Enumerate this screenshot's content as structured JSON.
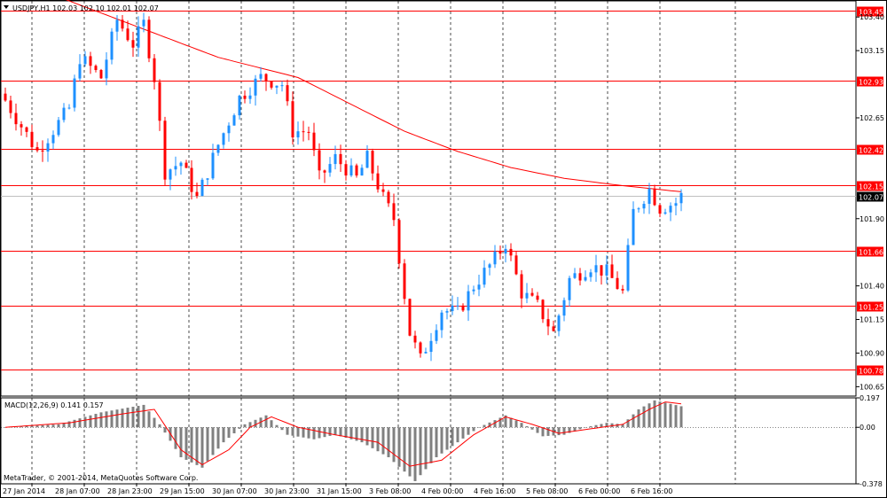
{
  "window": {
    "title": "USDJPY,H1  102.03 102.10 102.01 102.07",
    "indicator_title": "MACD(12,26,9) 0.141 0.157",
    "copyright": "MetaTrader, © 2001-2014, MetaQuotes Software Corp."
  },
  "colors": {
    "bull": "#1e90ff",
    "bear": "#ff0000",
    "level_line": "#ff0000",
    "ma": "#ff0000",
    "grid": "#000000",
    "histogram": "#808080",
    "signal": "#ff0000"
  },
  "price_axis": {
    "min": 100.58,
    "max": 103.52,
    "ticks": [
      "103.40",
      "103.15",
      "102.65",
      "101.90",
      "101.40",
      "101.15",
      "100.90",
      "100.65"
    ],
    "tick_values": [
      103.4,
      103.15,
      102.65,
      101.9,
      101.4,
      101.15,
      100.9,
      100.65
    ],
    "current_price": "102.07",
    "current_value": 102.07
  },
  "levels": [
    {
      "label": "103.45",
      "value": 103.45
    },
    {
      "label": "102.93",
      "value": 102.93
    },
    {
      "label": "102.42",
      "value": 102.42
    },
    {
      "label": "102.15",
      "value": 102.15
    },
    {
      "label": "101.66",
      "value": 101.66
    },
    {
      "label": "101.25",
      "value": 101.25
    },
    {
      "label": "100.78",
      "value": 100.78
    }
  ],
  "macd_axis": {
    "min": -0.378,
    "max": 0.197,
    "ticks": [
      "0.197",
      "0.00",
      "-0.378"
    ],
    "tick_values": [
      0.197,
      0.0,
      -0.378
    ]
  },
  "time_axis": {
    "labels": [
      "27 Jan 2014",
      "28 Jan 07:00",
      "28 Jan 23:00",
      "29 Jan 15:00",
      "30 Jan 07:00",
      "30 Jan 23:00",
      "31 Jan 15:00",
      "3 Feb 08:00",
      "4 Feb 00:00",
      "4 Feb 16:00",
      "5 Feb 08:00",
      "6 Feb 00:00",
      "6 Feb 16:00"
    ]
  },
  "chart_data": {
    "type": "candlestick",
    "symbol": "USDJPY",
    "timeframe": "H1",
    "bar_count": 128,
    "close_path": [
      [
        0,
        102.78
      ],
      [
        6,
        102.4
      ],
      [
        12,
        102.72
      ],
      [
        14,
        103.1
      ],
      [
        18,
        102.95
      ],
      [
        21,
        103.38
      ],
      [
        24,
        103.2
      ],
      [
        26,
        103.35
      ],
      [
        28,
        102.95
      ],
      [
        30,
        102.25
      ],
      [
        33,
        102.32
      ],
      [
        36,
        102.05
      ],
      [
        40,
        102.45
      ],
      [
        44,
        102.8
      ],
      [
        48,
        102.95
      ],
      [
        52,
        102.9
      ],
      [
        54,
        102.55
      ],
      [
        57,
        102.55
      ],
      [
        59,
        102.2
      ],
      [
        62,
        102.35
      ],
      [
        66,
        102.2
      ],
      [
        68,
        102.35
      ],
      [
        71,
        102.05
      ],
      [
        73,
        101.9
      ],
      [
        76,
        101.05
      ],
      [
        78,
        100.85
      ],
      [
        82,
        101.22
      ],
      [
        85,
        101.2
      ],
      [
        88,
        101.4
      ],
      [
        92,
        101.6
      ],
      [
        94,
        101.72
      ],
      [
        97,
        101.35
      ],
      [
        100,
        101.25
      ],
      [
        103,
        101.05
      ],
      [
        106,
        101.45
      ],
      [
        110,
        101.55
      ],
      [
        113,
        101.5
      ],
      [
        116,
        101.35
      ],
      [
        118,
        101.95
      ],
      [
        121,
        102.12
      ],
      [
        123,
        101.98
      ],
      [
        126,
        102.02
      ],
      [
        127,
        102.07
      ]
    ],
    "ma_path": [
      [
        0,
        103.7
      ],
      [
        20,
        103.4
      ],
      [
        40,
        103.1
      ],
      [
        55,
        102.95
      ],
      [
        65,
        102.75
      ],
      [
        75,
        102.55
      ],
      [
        85,
        102.4
      ],
      [
        95,
        102.28
      ],
      [
        105,
        102.2
      ],
      [
        115,
        102.15
      ],
      [
        127,
        102.1
      ]
    ],
    "macd_hist_path": [
      [
        0,
        0.0
      ],
      [
        10,
        0.02
      ],
      [
        18,
        0.1
      ],
      [
        26,
        0.15
      ],
      [
        29,
        0.02
      ],
      [
        33,
        -0.2
      ],
      [
        37,
        -0.27
      ],
      [
        41,
        -0.1
      ],
      [
        45,
        0.02
      ],
      [
        49,
        0.08
      ],
      [
        53,
        -0.05
      ],
      [
        58,
        -0.08
      ],
      [
        62,
        -0.05
      ],
      [
        67,
        -0.1
      ],
      [
        72,
        -0.2
      ],
      [
        77,
        -0.36
      ],
      [
        81,
        -0.2
      ],
      [
        85,
        -0.1
      ],
      [
        89,
        0.0
      ],
      [
        94,
        0.08
      ],
      [
        97,
        0.03
      ],
      [
        101,
        -0.06
      ],
      [
        105,
        -0.05
      ],
      [
        109,
        0.0
      ],
      [
        113,
        0.03
      ],
      [
        116,
        0.02
      ],
      [
        119,
        0.12
      ],
      [
        122,
        0.18
      ],
      [
        127,
        0.141
      ]
    ],
    "macd_signal_path": [
      [
        0,
        0.0
      ],
      [
        12,
        0.03
      ],
      [
        22,
        0.09
      ],
      [
        28,
        0.12
      ],
      [
        33,
        -0.15
      ],
      [
        37,
        -0.25
      ],
      [
        42,
        -0.15
      ],
      [
        46,
        0.0
      ],
      [
        50,
        0.07
      ],
      [
        55,
        0.0
      ],
      [
        62,
        -0.05
      ],
      [
        70,
        -0.1
      ],
      [
        76,
        -0.26
      ],
      [
        82,
        -0.22
      ],
      [
        88,
        -0.05
      ],
      [
        94,
        0.07
      ],
      [
        99,
        0.02
      ],
      [
        104,
        -0.04
      ],
      [
        110,
        -0.01
      ],
      [
        116,
        0.02
      ],
      [
        121,
        0.12
      ],
      [
        124,
        0.17
      ],
      [
        127,
        0.157
      ]
    ]
  }
}
